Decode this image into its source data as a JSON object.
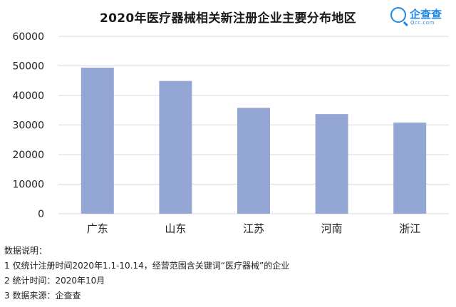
{
  "chart_data": {
    "type": "bar",
    "title": "2020年医疗器械相关新注册企业主要分布地区",
    "categories": [
      "广东",
      "山东",
      "江苏",
      "河南",
      "浙江"
    ],
    "values": [
      49400,
      44900,
      35800,
      33700,
      30800
    ],
    "ylim": [
      0,
      60000
    ],
    "yticks": [
      0,
      10000,
      20000,
      30000,
      40000,
      50000,
      60000
    ],
    "grid": true,
    "bar_color": "#94a6d4",
    "grid_color": "#d9d9d9"
  },
  "logo": {
    "name": "企查查",
    "domain": "Qcc.com",
    "color": "#1e88e5"
  },
  "notes": {
    "header": "数据说明：",
    "items": [
      "1 仅统计注册时间2020年1.1-10.14，经营范围含关键词“医疗器械”的企业",
      "2 统计时间：2020年10月",
      "3 数据来源：企查查"
    ]
  }
}
